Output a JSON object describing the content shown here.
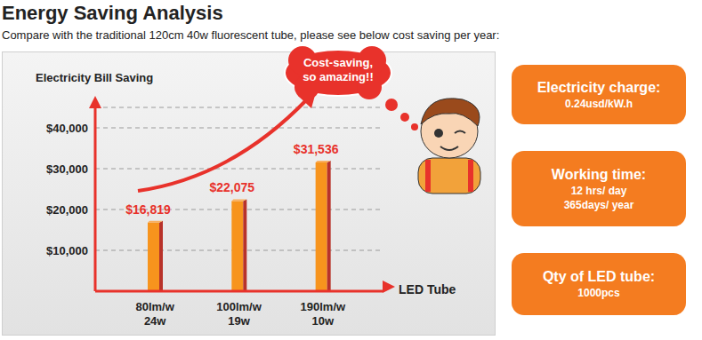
{
  "chart_data": {
    "type": "bar",
    "title": "Energy Saving Analysis",
    "subtitle": "Compare with the traditional 120cm 40w fluorescent tube, please see below cost saving per year:",
    "y_label": "Electricity Bill Saving",
    "x_label": "LED Tube",
    "categories": [
      "80lm/w\n24w",
      "100lm/w\n19w",
      "190lm/w\n10w"
    ],
    "values": [
      16819,
      22075,
      31536
    ],
    "value_labels": [
      "$16,819",
      "$22,075",
      "$31,536"
    ],
    "data_labels": true,
    "color": "#f7941d",
    "ylim": [
      0,
      45000
    ],
    "yticks": [
      {
        "value": 10000,
        "label": "$10,000"
      },
      {
        "value": 20000,
        "label": "$20,000"
      },
      {
        "value": 30000,
        "label": "$30,000"
      },
      {
        "value": 40000,
        "label": "$40,000"
      }
    ],
    "grid": true,
    "annotation": "Cost-saving,\nso amazing!!",
    "info_boxes": [
      {
        "title": "Electricity charge:",
        "lines": [
          "0.24usd/kW.h"
        ]
      },
      {
        "title": "Working time:",
        "lines": [
          "12 hrs/ day",
          "365days/ year"
        ]
      },
      {
        "title": "Qty of LED tube:",
        "lines": [
          "1000pcs"
        ]
      }
    ]
  }
}
